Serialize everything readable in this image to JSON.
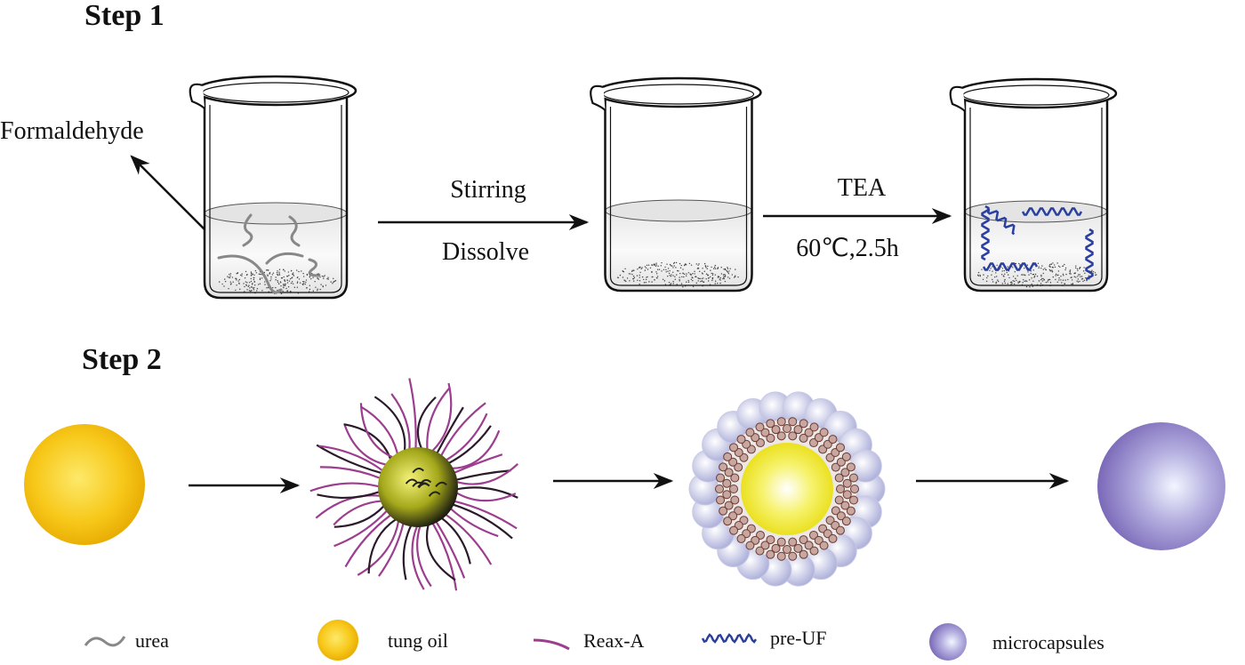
{
  "step1": {
    "title": "Step 1",
    "formaldehyde_label": "Formaldehyde",
    "arrow1": {
      "top": "Stirring",
      "bottom": "Dissolve"
    },
    "arrow2": {
      "top": "TEA",
      "bottom": "60℃,2.5h"
    }
  },
  "step2": {
    "title": "Step 2"
  },
  "legend": [
    {
      "label": "urea"
    },
    {
      "label": "tung oil"
    },
    {
      "label": "Reax-A"
    },
    {
      "label": "pre-UF"
    },
    {
      "label": "microcapsules"
    }
  ]
}
